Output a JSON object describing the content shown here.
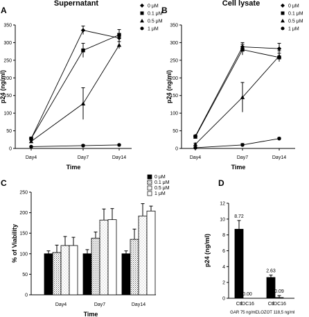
{
  "chart_data": [
    {
      "panel": "A",
      "type": "line",
      "title": "Supernatant",
      "xlabel": "Time",
      "ylabel": "p24 (ng/ml)",
      "categories": [
        "Day4",
        "Day7",
        "Day14"
      ],
      "ylim": [
        0,
        350
      ],
      "yticks": [
        "0",
        "50",
        "100",
        "150",
        "200",
        "250",
        "300",
        "350"
      ],
      "legend_position": "top-right",
      "series": [
        {
          "name": "0  μM",
          "marker": "diamond",
          "values": [
            28,
            335,
            313
          ],
          "errors": [
            3,
            12,
            10
          ]
        },
        {
          "name": "0.1  μM",
          "marker": "square",
          "values": [
            28,
            278,
            322
          ],
          "errors": [
            3,
            20,
            15
          ]
        },
        {
          "name": "0.5  μM",
          "marker": "triangle",
          "values": [
            20,
            127,
            293
          ],
          "errors": [
            3,
            45,
            10
          ]
        },
        {
          "name": "1  μM",
          "marker": "circle",
          "values": [
            5,
            8,
            10
          ],
          "errors": [
            1,
            3,
            2
          ]
        }
      ]
    },
    {
      "panel": "B",
      "type": "line",
      "title": "Cell lysate",
      "xlabel": "Time",
      "ylabel": "p24 (ng/ml)",
      "categories": [
        "Day4",
        "Day7",
        "Day14"
      ],
      "ylim": [
        0,
        350
      ],
      "yticks": [
        "0",
        "50",
        "100",
        "150",
        "200",
        "250",
        "300",
        "350"
      ],
      "legend_position": "top-right",
      "series": [
        {
          "name": "0  μM",
          "marker": "diamond",
          "values": [
            35,
            288,
            283
          ],
          "errors": [
            3,
            12,
            15
          ]
        },
        {
          "name": "0.1  μM",
          "marker": "square",
          "values": [
            33,
            280,
            258
          ],
          "errors": [
            3,
            15,
            12
          ]
        },
        {
          "name": "0.5  μM",
          "marker": "triangle",
          "values": [
            12,
            145,
            262
          ],
          "errors": [
            3,
            42,
            15
          ]
        },
        {
          "name": "1  μM",
          "marker": "circle",
          "values": [
            2,
            10,
            28
          ],
          "errors": [
            1,
            4,
            3
          ]
        }
      ]
    },
    {
      "panel": "C",
      "type": "bar",
      "xlabel": "Time",
      "ylabel": "% of Viability",
      "categories": [
        "Day4",
        "Day7",
        "Day14"
      ],
      "ylim": [
        0,
        250
      ],
      "yticks": [
        "0",
        "50",
        "100",
        "150",
        "200",
        "250"
      ],
      "legend_position": "top-right",
      "series": [
        {
          "name": "0  μM",
          "fill": "black",
          "values": [
            100,
            100,
            100
          ],
          "errors": [
            7,
            10,
            7
          ]
        },
        {
          "name": "0.1  μM",
          "fill": "pattern",
          "values": [
            103,
            138,
            135
          ],
          "errors": [
            18,
            15,
            25
          ]
        },
        {
          "name": "0.5  μM",
          "fill": "dotted",
          "values": [
            120,
            182,
            192
          ],
          "errors": [
            22,
            27,
            30
          ]
        },
        {
          "name": "1  μM",
          "fill": "white",
          "values": [
            120,
            183,
            204
          ],
          "errors": [
            20,
            27,
            12
          ]
        }
      ]
    },
    {
      "panel": "D",
      "type": "bar",
      "ylabel": "p24 (ng/ml)",
      "ylim": [
        0,
        12
      ],
      "yticks": [
        "0",
        "2",
        "4",
        "6",
        "8",
        "10",
        "12"
      ],
      "groups": [
        {
          "group_label": "GAR 75 ng/ml",
          "bars": [
            {
              "label": "Ctl",
              "value": 8.72,
              "value_label": "8.72",
              "error": 1.1
            },
            {
              "label": "IDC16",
              "value": 0.0,
              "value_label": "0.00",
              "error": 0
            }
          ]
        },
        {
          "group_label": "CLOZOT 118,5 ng/ml",
          "bars": [
            {
              "label": "Ctl",
              "value": 2.63,
              "value_label": "2.63",
              "error": 0.3
            },
            {
              "label": "IDC16",
              "value": 0.09,
              "value_label": "0.09",
              "error": 0.25
            }
          ]
        }
      ]
    }
  ]
}
